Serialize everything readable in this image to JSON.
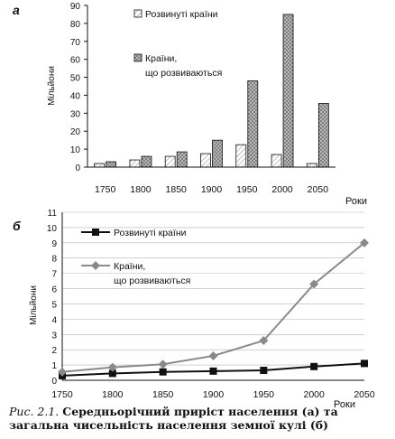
{
  "chart_data": [
    {
      "type": "bar",
      "panel_label": "а",
      "categories": [
        "1750",
        "1800",
        "1850",
        "1900",
        "1950",
        "2000",
        "2050"
      ],
      "series": [
        {
          "name": "Розвинуті країни",
          "values": [
            2,
            4,
            6,
            7.5,
            12.5,
            7,
            2
          ],
          "color": "#ffffff"
        },
        {
          "name": "Країни, що розвиваються",
          "values": [
            3,
            6,
            8.5,
            15,
            48,
            85,
            35.5
          ],
          "color": "#7a7a7a"
        }
      ],
      "ylabel": "Мільйони",
      "xlabel": "Роки",
      "ylim": [
        0,
        90
      ],
      "yticks": [
        0,
        10,
        20,
        30,
        40,
        50,
        60,
        70,
        80,
        90
      ],
      "grid": false,
      "legend": "top-center"
    },
    {
      "type": "line",
      "panel_label": "б",
      "x": [
        1750,
        1800,
        1850,
        1900,
        1950,
        2000,
        2050
      ],
      "series": [
        {
          "name": "Розвинуті країни",
          "values": [
            0.3,
            0.45,
            0.55,
            0.6,
            0.65,
            0.9,
            1.1
          ],
          "color": "#111111",
          "marker": "square"
        },
        {
          "name": "Країни, що розвиваються",
          "values": [
            0.55,
            0.85,
            1.05,
            1.6,
            2.6,
            6.3,
            9.0
          ],
          "color": "#8a8a8a",
          "marker": "diamond"
        }
      ],
      "ylabel": "Мільйони",
      "xlabel": "Роки",
      "ylim": [
        0,
        11
      ],
      "yticks": [
        0,
        1,
        2,
        3,
        4,
        5,
        6,
        7,
        8,
        9,
        10,
        11
      ],
      "xticks": [
        "1750",
        "1800",
        "1850",
        "1900",
        "1950",
        "2000",
        "2050"
      ],
      "grid": true,
      "legend": "top-left"
    }
  ],
  "caption": {
    "label": "Рис. 2.1.",
    "text": "Середньорічний приріст населення (а) та загальна чисельність населення земної кулі (б)"
  }
}
